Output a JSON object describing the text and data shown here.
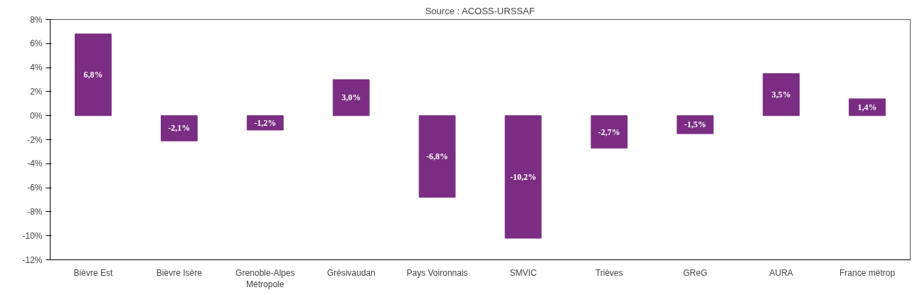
{
  "chart_data": {
    "type": "bar",
    "annotations": [
      "Source : ACOSS-URSSAF"
    ],
    "categories": [
      "Bièvre Est",
      "Bièvre Isère",
      "Grenoble-Alpes Métropole",
      "Grésivaudan",
      "Pays Voironnais",
      "SMVIC",
      "Trièves",
      "GReG",
      "AURA",
      "France métrop"
    ],
    "values": [
      6.8,
      -2.1,
      -1.2,
      3.0,
      -6.8,
      -10.2,
      -2.7,
      -1.5,
      3.5,
      1.4
    ],
    "value_labels": [
      "6,8%",
      "-2,1%",
      "-1,2%",
      "3,0%",
      "-6,8%",
      "-10,2%",
      "-2,7%",
      "-1,5%",
      "3,5%",
      "1,4%"
    ],
    "color": "#7b2d83",
    "ylim": [
      -12,
      8
    ],
    "yticks": [
      {
        "value": -12,
        "label": "-12%"
      },
      {
        "value": -10,
        "label": "-10%"
      },
      {
        "value": -8,
        "label": "-8%"
      },
      {
        "value": -6,
        "label": "-6%"
      },
      {
        "value": -4,
        "label": "-4%"
      },
      {
        "value": -2,
        "label": "-2%"
      },
      {
        "value": 0,
        "label": "0%"
      },
      {
        "value": 2,
        "label": "2%"
      },
      {
        "value": 4,
        "label": "4%"
      },
      {
        "value": 6,
        "label": "6%"
      },
      {
        "value": 8,
        "label": "8%"
      }
    ],
    "grid": false
  }
}
